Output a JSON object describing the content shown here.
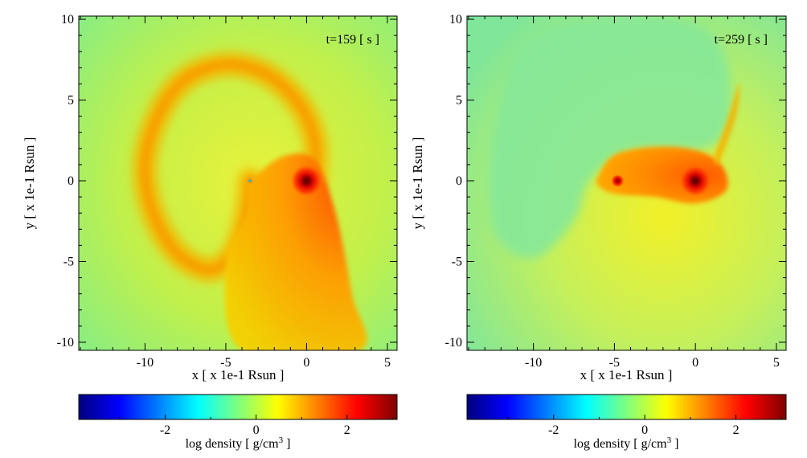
{
  "chart_data": [
    {
      "type": "heatmap",
      "panel": "left",
      "annotation": "t=159 [ s ]",
      "xlabel": "x [ x 1e-1 Rsun ]",
      "ylabel": "y [ x 1e-1 Rsun ]",
      "xlim": [
        -14.1,
        5.6
      ],
      "ylim": [
        -10.5,
        10.2
      ],
      "xticks": [
        -10,
        -5,
        0,
        5
      ],
      "yticks": [
        -10,
        -5,
        0,
        5,
        10
      ],
      "xtick_labels": [
        "-10",
        "-5",
        "0",
        "5"
      ],
      "ytick_labels": [
        "-10",
        "-5",
        "0",
        "5",
        "10"
      ],
      "features": {
        "dense_core": {
          "x": 0,
          "y": 0
        },
        "secondary_point": {
          "x": -3.5,
          "y": 0
        },
        "spiral_arm": [
          [
            0.5,
            0
          ],
          [
            0.5,
            2.5
          ],
          [
            -0.5,
            4.8
          ],
          [
            -2.5,
            6.6
          ],
          [
            -5.0,
            7.2
          ],
          [
            -7.5,
            6.3
          ],
          [
            -9.2,
            4.0
          ],
          [
            -10.0,
            1.0
          ],
          [
            -9.5,
            -2.0
          ],
          [
            -8.0,
            -4.5
          ],
          [
            -6.0,
            -5.5
          ],
          [
            -4.5,
            -4.5
          ],
          [
            -3.7,
            -2.0
          ],
          [
            -3.5,
            0
          ]
        ],
        "stream_fan": [
          [
            -3.5,
            0
          ],
          [
            -1.5,
            1.5
          ],
          [
            0.5,
            1.3
          ],
          [
            1.8,
            -2
          ],
          [
            2.8,
            -7
          ],
          [
            3.3,
            -10.5
          ],
          [
            -4,
            -10.5
          ],
          [
            -5,
            -5
          ],
          [
            -3.7,
            -2
          ]
        ]
      }
    },
    {
      "type": "heatmap",
      "panel": "right",
      "annotation": "t=259 [ s ]",
      "xlabel": "x [ x 1e-1 Rsun ]",
      "ylabel": "y [ x 1e-1 Rsun ]",
      "xlim": [
        -14.1,
        5.6
      ],
      "ylim": [
        -10.5,
        10.2
      ],
      "xticks": [
        -10,
        -5,
        0,
        5
      ],
      "yticks": [
        -10,
        -5,
        0,
        5,
        10
      ],
      "xtick_labels": [
        "-10",
        "-5",
        "0",
        "5"
      ],
      "ytick_labels": [
        "-10",
        "-5",
        "0",
        "5",
        "10"
      ],
      "features": {
        "dense_core": {
          "x": 0,
          "y": 0
        },
        "secondary_core": {
          "x": -4.8,
          "y": 0
        },
        "bridge": [
          [
            -6.0,
            0.3
          ],
          [
            -5.0,
            1.6
          ],
          [
            -2.5,
            2.1
          ],
          [
            0,
            1.9
          ],
          [
            1.6,
            1.0
          ],
          [
            1.9,
            -0.6
          ],
          [
            0,
            -1.4
          ],
          [
            -2.5,
            -1.0
          ],
          [
            -5,
            -0.8
          ],
          [
            -6,
            -0.3
          ]
        ],
        "plume": [
          [
            1.5,
            1.2
          ],
          [
            2.5,
            4
          ],
          [
            2.7,
            6
          ],
          [
            2.0,
            3.8
          ],
          [
            1.2,
            1.5
          ]
        ]
      }
    }
  ],
  "colorbars": [
    {
      "label": "log density [ g/cm",
      "label_sup": "3",
      "label_end": " ]",
      "range": [
        -3.9,
        3.1
      ],
      "ticks": [
        -2,
        0,
        2
      ],
      "tick_labels": [
        "-2",
        "0",
        "2"
      ],
      "colormap": "jet",
      "colors": [
        "#00007f",
        "#0000ff",
        "#007fff",
        "#00ffff",
        "#7fff7f",
        "#ffff00",
        "#ff7f00",
        "#ff0000",
        "#7f0000"
      ]
    },
    {
      "label": "log density [ g/cm",
      "label_sup": "3",
      "label_end": " ]",
      "range": [
        -3.9,
        3.1
      ],
      "ticks": [
        -2,
        0,
        2
      ],
      "tick_labels": [
        "-2",
        "0",
        "2"
      ],
      "colormap": "jet",
      "colors": [
        "#00007f",
        "#0000ff",
        "#007fff",
        "#00ffff",
        "#7fff7f",
        "#ffff00",
        "#ff7f00",
        "#ff0000",
        "#7f0000"
      ]
    }
  ]
}
